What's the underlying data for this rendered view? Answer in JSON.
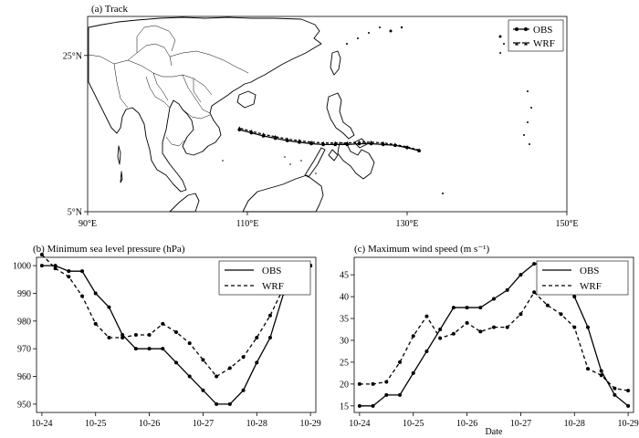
{
  "chart_data": [
    {
      "type": "line",
      "panel": "map",
      "title": "(a) Track",
      "xlim": [
        90,
        150
      ],
      "ylim": [
        5,
        30
      ],
      "x_ticks": [
        90,
        110,
        130,
        150
      ],
      "x_tick_labels": [
        "90°E",
        "110°E",
        "130°E",
        "150°E"
      ],
      "y_ticks": [
        5,
        25
      ],
      "y_tick_labels": [
        "5°N",
        "25°N"
      ],
      "legend_position": "top-right",
      "series": [
        {
          "name": "OBS",
          "style": "solid-circle",
          "lon": [
            131.5,
            130.0,
            128.5,
            127.0,
            125.5,
            124.0,
            122.5,
            121.0,
            119.5,
            118.0,
            116.5,
            115.0,
            113.5,
            112.0,
            110.5,
            109.0
          ],
          "lat": [
            12.8,
            13.2,
            13.5,
            13.6,
            13.7,
            13.7,
            13.6,
            13.6,
            13.6,
            13.7,
            13.9,
            14.1,
            14.4,
            14.7,
            15.1,
            15.5
          ]
        },
        {
          "name": "WRF",
          "style": "dashed-triangle",
          "lon": [
            131.5,
            130.0,
            128.5,
            127.0,
            125.5,
            124.0,
            122.5,
            121.0,
            119.5,
            118.0,
            116.5,
            115.0,
            113.5,
            112.0,
            110.5,
            109.0
          ],
          "lat": [
            12.9,
            13.3,
            13.6,
            13.8,
            13.9,
            13.9,
            13.8,
            13.8,
            13.8,
            13.9,
            14.1,
            14.3,
            14.6,
            14.9,
            15.3,
            15.7
          ]
        }
      ]
    },
    {
      "type": "line",
      "title": "(b) Minimum sea level pressure (hPa)",
      "categories": [
        "10-24",
        "10-25",
        "10-26",
        "10-27",
        "10-28",
        "10-29"
      ],
      "x": [
        0,
        0.25,
        0.5,
        0.75,
        1.0,
        1.25,
        1.5,
        1.75,
        2.0,
        2.25,
        2.5,
        2.75,
        3.0,
        3.25,
        3.5,
        3.75,
        4.0,
        4.25,
        4.5,
        4.75,
        5.0
      ],
      "ylim": [
        947,
        1003
      ],
      "y_ticks": [
        950,
        960,
        970,
        980,
        990,
        1000
      ],
      "legend_position": "top-right",
      "series": [
        {
          "name": "OBS",
          "style": "solid",
          "values": [
            1000,
            1000,
            998,
            998,
            990,
            985,
            975,
            970,
            970,
            970,
            965,
            960,
            955,
            950,
            950,
            955,
            965,
            974,
            990,
            998,
            1000
          ]
        },
        {
          "name": "WRF",
          "style": "dashed",
          "values": [
            1004,
            999,
            996,
            989,
            979,
            974,
            974,
            975,
            975,
            979,
            976,
            972,
            966,
            960,
            963,
            967,
            974,
            982,
            992,
            997,
            1000
          ]
        }
      ]
    },
    {
      "type": "line",
      "title": "(c) Maximum wind speed (m s⁻¹)",
      "xlabel": "Date",
      "categories": [
        "10-24",
        "10-25",
        "10-26",
        "10-27",
        "10-28",
        "10-29"
      ],
      "x": [
        0,
        0.25,
        0.5,
        0.75,
        1.0,
        1.25,
        1.5,
        1.75,
        2.0,
        2.25,
        2.5,
        2.75,
        3.0,
        3.25,
        3.5,
        3.75,
        4.0,
        4.25,
        4.5,
        4.75,
        5.0
      ],
      "ylim": [
        13.5,
        49
      ],
      "y_ticks": [
        15,
        20,
        25,
        30,
        35,
        40,
        45
      ],
      "legend_position": "top-right",
      "series": [
        {
          "name": "OBS",
          "style": "solid",
          "values": [
            15,
            15,
            17.5,
            17.5,
            22.5,
            27.5,
            32.5,
            37.5,
            37.5,
            37.5,
            39.5,
            41.5,
            45,
            47.5,
            47.5,
            45,
            40,
            33,
            23,
            17.5,
            15
          ]
        },
        {
          "name": "WRF",
          "style": "dashed",
          "values": [
            20,
            20,
            20.5,
            25,
            31,
            35.5,
            30.5,
            31.5,
            34,
            32,
            33,
            33,
            36,
            41,
            38,
            36,
            33,
            23.5,
            22,
            19,
            18.5
          ]
        }
      ]
    }
  ]
}
